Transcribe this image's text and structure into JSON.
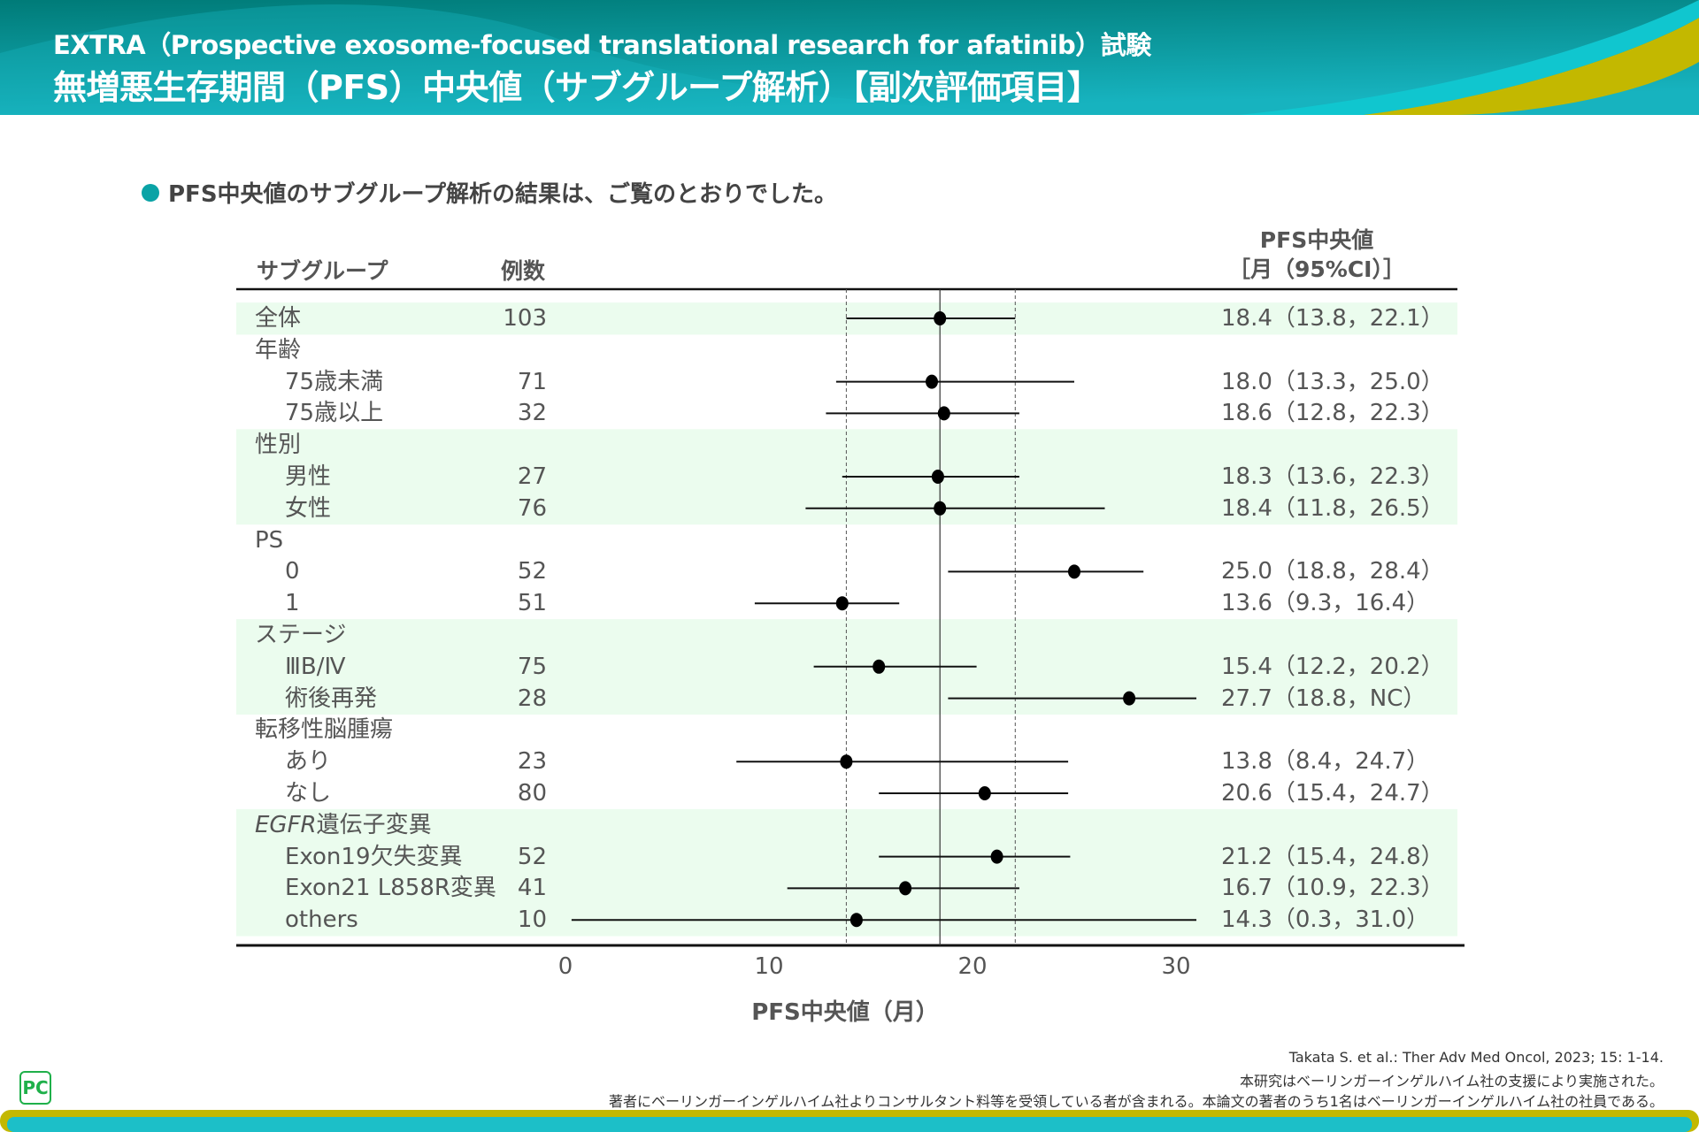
{
  "header": {
    "line1": "EXTRA（Prospective exosome-focused translational research for afatinib）試験",
    "line2": "無増悪生存期間（PFS）中央値（サブグループ解析）【副次評価項目】"
  },
  "lead_text": "PFS中央値のサブグループ解析の結果は、ご覧のとおりでした。",
  "colors": {
    "header_dark": "#00716f",
    "header_light": "#1ab8c4",
    "accent_yellow": "#c3b800",
    "band": "#ebfcee",
    "bullet": "#0aa3a6"
  },
  "table_headers": {
    "subgroup": "サブグループ",
    "n": "例数",
    "pfs_line1": "PFS中央値",
    "pfs_line2": "［月（95%CI）］"
  },
  "chart_data": {
    "type": "forest",
    "xlabel": "PFS中央値（月）",
    "xticks": [
      0,
      10,
      20,
      30
    ],
    "xlim": [
      0,
      31
    ],
    "reference_line": 18.4,
    "reference_ci": [
      13.8,
      22.1
    ],
    "rows": [
      {
        "label": "全体",
        "n": "103",
        "median": 18.4,
        "lower": 13.8,
        "upper": 22.1,
        "text": "18.4（13.8，22.1）",
        "level": 0,
        "band": true
      },
      {
        "label": "年齢",
        "level": 0,
        "band": false
      },
      {
        "label": "75歳未満",
        "n": "71",
        "median": 18.0,
        "lower": 13.3,
        "upper": 25.0,
        "text": "18.0（13.3，25.0）",
        "level": 1,
        "band": false
      },
      {
        "label": "75歳以上",
        "n": "32",
        "median": 18.6,
        "lower": 12.8,
        "upper": 22.3,
        "text": "18.6（12.8，22.3）",
        "level": 1,
        "band": false
      },
      {
        "label": "性別",
        "level": 0,
        "band": true
      },
      {
        "label": "男性",
        "n": "27",
        "median": 18.3,
        "lower": 13.6,
        "upper": 22.3,
        "text": "18.3（13.6，22.3）",
        "level": 1,
        "band": true
      },
      {
        "label": "女性",
        "n": "76",
        "median": 18.4,
        "lower": 11.8,
        "upper": 26.5,
        "text": "18.4（11.8，26.5）",
        "level": 1,
        "band": true
      },
      {
        "label": "PS",
        "level": 0,
        "band": false
      },
      {
        "label": "0",
        "n": "52",
        "median": 25.0,
        "lower": 18.8,
        "upper": 28.4,
        "text": "25.0（18.8，28.4）",
        "level": 1,
        "band": false
      },
      {
        "label": "1",
        "n": "51",
        "median": 13.6,
        "lower": 9.3,
        "upper": 16.4,
        "text": "13.6（9.3，16.4）",
        "level": 1,
        "band": false
      },
      {
        "label": "ステージ",
        "level": 0,
        "band": true
      },
      {
        "label": "ⅢB/Ⅳ",
        "n": "75",
        "median": 15.4,
        "lower": 12.2,
        "upper": 20.2,
        "text": "15.4（12.2，20.2）",
        "level": 1,
        "band": true
      },
      {
        "label": "術後再発",
        "n": "28",
        "median": 27.7,
        "lower": 18.8,
        "upper": null,
        "text": "27.7（18.8，NC）",
        "level": 1,
        "band": true
      },
      {
        "label": "転移性脳腫瘍",
        "level": 0,
        "band": false
      },
      {
        "label": "あり",
        "n": "23",
        "median": 13.8,
        "lower": 8.4,
        "upper": 24.7,
        "text": "13.8（8.4，24.7）",
        "level": 1,
        "band": false
      },
      {
        "label": "なし",
        "n": "80",
        "median": 20.6,
        "lower": 15.4,
        "upper": 24.7,
        "text": "20.6（15.4，24.7）",
        "level": 1,
        "band": false
      },
      {
        "label_italic": "EGFR",
        "label": "遺伝子変異",
        "level": 0,
        "band": true
      },
      {
        "label": "Exon19欠失変異",
        "n": "52",
        "median": 21.2,
        "lower": 15.4,
        "upper": 24.8,
        "text": "21.2（15.4，24.8）",
        "level": 1,
        "band": true
      },
      {
        "label": "Exon21 L858R変異",
        "n": "41",
        "median": 16.7,
        "lower": 10.9,
        "upper": 22.3,
        "text": "16.7（10.9，22.3）",
        "level": 1,
        "band": true
      },
      {
        "label": "others",
        "n": "10",
        "median": 14.3,
        "lower": 0.3,
        "upper": 31.0,
        "text": "14.3（0.3，31.0）",
        "level": 1,
        "band": true
      }
    ]
  },
  "footer": {
    "citation": "Takata S. et al.: Ther Adv Med Oncol, 2023; 15: 1-14.",
    "note1": "本研究はベーリンガーインゲルハイム社の支援により実施された。",
    "note2": "著者にベーリンガーインゲルハイム社よりコンサルタント料等を受領している者が含まれる。本論文の著者のうち1名はベーリンガーインゲルハイム社の社員である。",
    "logo": "PC"
  }
}
